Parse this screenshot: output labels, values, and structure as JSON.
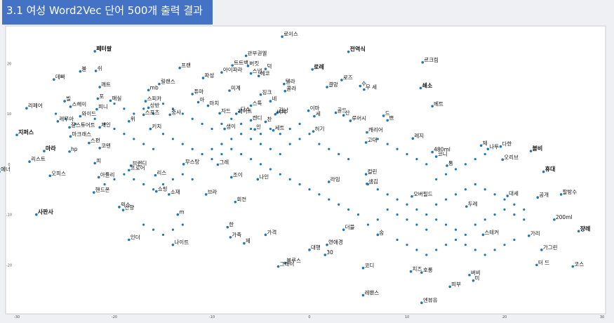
{
  "header": {
    "title": "3.1 여성 Word2Vec 단어 500개 출력 결과"
  },
  "colors": {
    "point": "#1f77b4",
    "title_bg": "#4472c4",
    "plot_bg": "#ffffff"
  },
  "chart_data": {
    "type": "scatter",
    "title": "",
    "xlabel": "",
    "ylabel": "",
    "xlim": [
      -30,
      30
    ],
    "ylim": [
      -29,
      27
    ],
    "grid": false,
    "xticks": [
      "-30",
      "-20",
      "-10",
      "0",
      "10",
      "20",
      "30"
    ],
    "yticks": [
      "20",
      "10",
      "0",
      "-10",
      "-20"
    ],
    "points": [
      {
        "label": "로이스",
        "x": -2.8,
        "y": 25.3
      },
      {
        "label": "페터팔",
        "x": -22.0,
        "y": 22.4,
        "bold": true
      },
      {
        "label": "관부권엘",
        "x": -6.5,
        "y": 21.5
      },
      {
        "label": "전역식",
        "x": 4.0,
        "y": 22.3,
        "bold": true
      },
      {
        "label": "르크림",
        "x": 11.6,
        "y": 20.2
      },
      {
        "label": "프랜",
        "x": -13.3,
        "y": 19.1
      },
      {
        "label": "트트백",
        "x": -7.9,
        "y": 19.6
      },
      {
        "label": "버킷",
        "x": -6.3,
        "y": 19.5
      },
      {
        "label": "아이파라",
        "x": -9.0,
        "y": 18.2
      },
      {
        "label": "로레",
        "x": 0.3,
        "y": 18.8,
        "bold": true
      },
      {
        "label": "블",
        "x": -23.5,
        "y": 18.4
      },
      {
        "label": "쉬",
        "x": -21.9,
        "y": 18.5
      },
      {
        "label": "스냅",
        "x": -6.0,
        "y": 18.0
      },
      {
        "label": "덕",
        "x": -4.5,
        "y": 18.9
      },
      {
        "label": "파성",
        "x": -10.9,
        "y": 17.1
      },
      {
        "label": "에코",
        "x": -5.2,
        "y": 17.5
      },
      {
        "label": "로즈",
        "x": 3.3,
        "y": 16.7
      },
      {
        "label": "데빠",
        "x": -26.2,
        "y": 16.8
      },
      {
        "label": "릴랜스",
        "x": -15.4,
        "y": 15.9
      },
      {
        "label": "텔라",
        "x": -2.6,
        "y": 15.9
      },
      {
        "label": "결망",
        "x": 1.8,
        "y": 15.3
      },
      {
        "label": "수",
        "x": 5.2,
        "y": 15.5
      },
      {
        "label": "무 세",
        "x": 5.6,
        "y": 14.8
      },
      {
        "label": "쇄소",
        "x": 11.4,
        "y": 15.1,
        "bold": true
      },
      {
        "label": "깨트",
        "x": -21.5,
        "y": 15.3
      },
      {
        "label": "mb",
        "x": -16.5,
        "y": 14.7
      },
      {
        "label": "퓨마",
        "x": -12.0,
        "y": 13.9
      },
      {
        "label": "콜라",
        "x": -2.5,
        "y": 14.5
      },
      {
        "label": "미계",
        "x": -8.2,
        "y": 14.6
      },
      {
        "label": "징크",
        "x": -5.0,
        "y": 13.8
      },
      {
        "label": "네",
        "x": -4.0,
        "y": 12.5
      },
      {
        "label": "포",
        "x": -21.7,
        "y": 13.0
      },
      {
        "label": "매실",
        "x": -20.4,
        "y": 12.6
      },
      {
        "label": "스피카",
        "x": -16.8,
        "y": 12.5
      },
      {
        "label": "아",
        "x": -11.4,
        "y": 12.3
      },
      {
        "label": "빌",
        "x": -25.1,
        "y": 12.5
      },
      {
        "label": "마치",
        "x": -10.4,
        "y": 11.6
      },
      {
        "label": "스헤이",
        "x": -24.5,
        "y": 11.4
      },
      {
        "label": "리페어",
        "x": -29.0,
        "y": 11.1
      },
      {
        "label": "피니",
        "x": -21.8,
        "y": 10.9
      },
      {
        "label": "상반",
        "x": -16.5,
        "y": 11.2
      },
      {
        "label": "자드",
        "x": -9.2,
        "y": 10.1
      },
      {
        "label": "다스",
        "x": -7.2,
        "y": 10.4
      },
      {
        "label": "게이트",
        "x": -7.5,
        "y": 10.0
      },
      {
        "label": "감남",
        "x": -3.3,
        "y": 10.2
      },
      {
        "label": "이마",
        "x": -0.1,
        "y": 10.6
      },
      {
        "label": "스톡",
        "x": -6.0,
        "y": 11.6
      },
      {
        "label": "골드",
        "x": 2.7,
        "y": 10.2
      },
      {
        "label": "베트",
        "x": 12.6,
        "y": 11.5
      },
      {
        "label": "와이드",
        "x": -23.5,
        "y": 9.5
      },
      {
        "label": "스포츠",
        "x": -17.0,
        "y": 9.8
      },
      {
        "label": "중사",
        "x": -14.3,
        "y": 9.8
      },
      {
        "label": "비치",
        "x": -3.5,
        "y": 9.9
      },
      {
        "label": "세",
        "x": 0.5,
        "y": 9.5
      },
      {
        "label": "산",
        "x": 3.5,
        "y": 9.7
      },
      {
        "label": "드",
        "x": 7.6,
        "y": 9.6
      },
      {
        "label": "루어시",
        "x": 4.2,
        "y": 8.6
      },
      {
        "label": "쁘",
        "x": 8.0,
        "y": 8.7
      },
      {
        "label": "레무아",
        "x": -25.8,
        "y": 8.5
      },
      {
        "label": "찬",
        "x": -4.5,
        "y": 8.4
      },
      {
        "label": "위",
        "x": -18.5,
        "y": 8.5
      },
      {
        "label": "캔디",
        "x": -6.0,
        "y": 8.7
      },
      {
        "label": "체인",
        "x": -21.5,
        "y": 7.3
      },
      {
        "label": "질스튜어트",
        "x": -24.6,
        "y": 7.3
      },
      {
        "label": "키치",
        "x": -16.3,
        "y": 7.0
      },
      {
        "label": "샘이",
        "x": -8.7,
        "y": 7.0
      },
      {
        "label": "인",
        "x": -5.6,
        "y": 6.9
      },
      {
        "label": "세트",
        "x": -3.7,
        "y": 6.7
      },
      {
        "label": "허기",
        "x": 0.4,
        "y": 6.5
      },
      {
        "label": "캐리어",
        "x": 5.9,
        "y": 6.3
      },
      {
        "label": "지퍼스",
        "x": -30.0,
        "y": 5.8,
        "bold": true
      },
      {
        "label": "마크래스",
        "x": -24.5,
        "y": 5.5
      },
      {
        "label": "레지",
        "x": 10.6,
        "y": 5.1
      },
      {
        "label": "고대",
        "x": 5.8,
        "y": 4.3
      },
      {
        "label": "스펀",
        "x": -22.6,
        "y": 4.2
      },
      {
        "label": "체",
        "x": 17.6,
        "y": 3.7
      },
      {
        "label": "다한",
        "x": 19.6,
        "y": 3.5
      },
      {
        "label": "나투",
        "x": 18.3,
        "y": 3.0
      },
      {
        "label": "코텐",
        "x": -21.5,
        "y": 3.2
      },
      {
        "label": "480ml",
        "x": 12.6,
        "y": 2.4
      },
      {
        "label": "볼비",
        "x": 22.7,
        "y": 2.6,
        "bold": true
      },
      {
        "label": "마라",
        "x": -27.2,
        "y": 2.6,
        "bold": true
      },
      {
        "label": "hp",
        "x": -24.6,
        "y": 2.5
      },
      {
        "label": "오리브",
        "x": 19.8,
        "y": 0.9
      },
      {
        "label": "코니",
        "x": 13.0,
        "y": 1.5
      },
      {
        "label": "리스트",
        "x": -28.7,
        "y": 0.5
      },
      {
        "label": "피",
        "x": -22.0,
        "y": 0.2
      },
      {
        "label": "무스탕",
        "x": -12.9,
        "y": 0.0
      },
      {
        "label": "그레",
        "x": -9.4,
        "y": -0.1
      },
      {
        "label": "통",
        "x": 14.1,
        "y": -0.3
      },
      {
        "label": "브랜디",
        "x": -18.3,
        "y": -0.3
      },
      {
        "label": "에너",
        "x": -31.8,
        "y": -1.5
      },
      {
        "label": "오피스",
        "x": -26.6,
        "y": -2.3
      },
      {
        "label": "아틀리",
        "x": -21.6,
        "y": -2.6
      },
      {
        "label": "프로어",
        "x": -18.5,
        "y": -1.2
      },
      {
        "label": "리스",
        "x": -15.8,
        "y": -2.2
      },
      {
        "label": "조이",
        "x": -8.0,
        "y": -2.6
      },
      {
        "label": "나인",
        "x": -5.3,
        "y": -3.0
      },
      {
        "label": "휴대",
        "x": 24.0,
        "y": -1.5,
        "bold": true
      },
      {
        "label": "컬린",
        "x": 5.8,
        "y": -2.0
      },
      {
        "label": "라잉",
        "x": 2.0,
        "y": -3.5
      },
      {
        "label": "샘김",
        "x": 5.9,
        "y": -3.9
      },
      {
        "label": "핸드폰",
        "x": -22.1,
        "y": -5.6
      },
      {
        "label": "쇼핑",
        "x": -15.7,
        "y": -5.4
      },
      {
        "label": "소재",
        "x": -14.4,
        "y": -6.0
      },
      {
        "label": "브라",
        "x": -10.6,
        "y": -6.0
      },
      {
        "label": "오버필드",
        "x": 10.5,
        "y": -6.4
      },
      {
        "label": "회전",
        "x": -7.6,
        "y": -7.5
      },
      {
        "label": "대세",
        "x": 20.3,
        "y": -6.3
      },
      {
        "label": "공개",
        "x": 23.4,
        "y": -6.6
      },
      {
        "label": "팔방수",
        "x": 25.8,
        "y": -6.0
      },
      {
        "label": "픽스",
        "x": -19.5,
        "y": -8.5
      },
      {
        "label": "두레",
        "x": 16.1,
        "y": -8.4
      },
      {
        "label": "산향",
        "x": -19.1,
        "y": -9.1
      },
      {
        "label": "사판사",
        "x": -28.0,
        "y": -10.0,
        "bold": true
      },
      {
        "label": "m",
        "x": -13.5,
        "y": -10.0
      },
      {
        "label": "200ml",
        "x": 25.1,
        "y": -11.0
      },
      {
        "label": "한",
        "x": -8.4,
        "y": -12.5
      },
      {
        "label": "가격",
        "x": -4.5,
        "y": -14.0
      },
      {
        "label": "더블",
        "x": 3.5,
        "y": -13.0
      },
      {
        "label": "쟝레",
        "x": 27.6,
        "y": -13.3,
        "bold": true
      },
      {
        "label": "숨",
        "x": 7.0,
        "y": -14.0
      },
      {
        "label": "스테커",
        "x": 17.8,
        "y": -14.0
      },
      {
        "label": "가리",
        "x": 22.5,
        "y": -14.2
      },
      {
        "label": "인더",
        "x": -18.5,
        "y": -15.0
      },
      {
        "label": "가족",
        "x": -8.1,
        "y": -14.5
      },
      {
        "label": "제",
        "x": -6.7,
        "y": -15.7
      },
      {
        "label": "연애경",
        "x": 1.8,
        "y": -16.0
      },
      {
        "label": "나이트",
        "x": -14.0,
        "y": -16.0
      },
      {
        "label": "대행",
        "x": 0.0,
        "y": -17.0
      },
      {
        "label": "30",
        "x": 1.6,
        "y": -18.0
      },
      {
        "label": "블루스",
        "x": -2.5,
        "y": -19.6
      },
      {
        "label": "그래이",
        "x": -3.2,
        "y": -20.3
      },
      {
        "label": "코디",
        "x": 5.5,
        "y": -20.6
      },
      {
        "label": "가그린",
        "x": 23.8,
        "y": -17.0
      },
      {
        "label": "터 드",
        "x": 23.3,
        "y": -20.0
      },
      {
        "label": "코스",
        "x": 27.0,
        "y": -20.3
      },
      {
        "label": "치즈",
        "x": 10.4,
        "y": -21.3
      },
      {
        "label": "호롱",
        "x": 11.5,
        "y": -21.5
      },
      {
        "label": "버비",
        "x": 16.4,
        "y": -22.0
      },
      {
        "label": "미",
        "x": 16.8,
        "y": -23.1
      },
      {
        "label": "피부",
        "x": 14.4,
        "y": -24.3
      },
      {
        "label": "레팬스",
        "x": 5.5,
        "y": -26.0
      },
      {
        "label": "엔뷰유",
        "x": 11.5,
        "y": -27.5
      }
    ],
    "extra_points": [
      [
        -26,
        10
      ],
      [
        -25,
        9
      ],
      [
        -24,
        8
      ],
      [
        -22,
        9
      ],
      [
        -21,
        8
      ],
      [
        -20,
        7
      ],
      [
        -19,
        6
      ],
      [
        -18,
        5
      ],
      [
        -17,
        4
      ],
      [
        -16,
        3
      ],
      [
        -15,
        6
      ],
      [
        -14,
        5
      ],
      [
        -13,
        4
      ],
      [
        -12,
        3
      ],
      [
        -11,
        2
      ],
      [
        -10,
        1
      ],
      [
        -9,
        4
      ],
      [
        -8,
        5
      ],
      [
        -7,
        6
      ],
      [
        -6,
        5
      ],
      [
        -5,
        4
      ],
      [
        -4,
        3
      ],
      [
        -3,
        2
      ],
      [
        -2,
        4
      ],
      [
        -1,
        5
      ],
      [
        0,
        6
      ],
      [
        1,
        4
      ],
      [
        2,
        3
      ],
      [
        3,
        2
      ],
      [
        4,
        1
      ],
      [
        -20,
        12
      ],
      [
        -19,
        11
      ],
      [
        -18,
        10
      ],
      [
        -17,
        11
      ],
      [
        -16,
        10
      ],
      [
        -15,
        12
      ],
      [
        -14,
        11
      ],
      [
        -13,
        10
      ],
      [
        -12,
        9
      ],
      [
        -11,
        8
      ],
      [
        -10,
        7
      ],
      [
        -9,
        8
      ],
      [
        -8,
        9
      ],
      [
        -7,
        8
      ],
      [
        -6,
        7
      ],
      [
        -5,
        6
      ],
      [
        -4,
        7
      ],
      [
        -3,
        6
      ],
      [
        -2,
        7
      ],
      [
        -1,
        8
      ],
      [
        6,
        -4
      ],
      [
        7,
        -5
      ],
      [
        8,
        -6
      ],
      [
        9,
        -7
      ],
      [
        10,
        -8
      ],
      [
        11,
        -9
      ],
      [
        12,
        -10
      ],
      [
        13,
        -8
      ],
      [
        14,
        -7
      ],
      [
        15,
        -6
      ],
      [
        16,
        -5
      ],
      [
        17,
        -4
      ],
      [
        18,
        -5
      ],
      [
        19,
        -6
      ],
      [
        20,
        -7
      ],
      [
        21,
        -8
      ],
      [
        22,
        -9
      ],
      [
        13,
        -11
      ],
      [
        14,
        -12
      ],
      [
        15,
        -13
      ],
      [
        16,
        -14
      ],
      [
        17,
        -12
      ],
      [
        18,
        -11
      ],
      [
        19,
        -10
      ],
      [
        20,
        -9
      ],
      [
        21,
        -10
      ],
      [
        22,
        -11
      ],
      [
        8,
        -9
      ],
      [
        9,
        -10
      ],
      [
        10,
        -11
      ],
      [
        11,
        -12
      ],
      [
        12,
        -13
      ],
      [
        7,
        -11
      ],
      [
        6,
        -12
      ],
      [
        5,
        -10
      ],
      [
        4,
        -9
      ],
      [
        3,
        -8
      ],
      [
        2,
        -7
      ],
      [
        1,
        -6
      ],
      [
        0,
        -5
      ],
      [
        -1,
        -4
      ],
      [
        -2,
        -3
      ],
      [
        -3,
        -2
      ],
      [
        -4,
        -1
      ],
      [
        -5,
        0
      ],
      [
        -6,
        1
      ],
      [
        -7,
        2
      ],
      [
        -8,
        3
      ],
      [
        -9,
        2
      ],
      [
        -10,
        3
      ],
      [
        -21,
        -4
      ],
      [
        -20,
        -3
      ],
      [
        -19,
        -2
      ],
      [
        -18,
        -3
      ],
      [
        -17,
        -4
      ],
      [
        -16,
        -5
      ],
      [
        -15,
        -4
      ],
      [
        -14,
        -3
      ],
      [
        -13,
        -2
      ],
      [
        -12,
        -3
      ],
      [
        -17,
        -12
      ],
      [
        -16,
        -13
      ],
      [
        -15,
        -14
      ],
      [
        -14,
        -13
      ],
      [
        -13,
        -12
      ],
      [
        9,
        -15
      ],
      [
        10,
        -16
      ],
      [
        11,
        -17
      ],
      [
        12,
        -18
      ],
      [
        13,
        -17
      ],
      [
        14,
        -16
      ],
      [
        15,
        -15
      ],
      [
        16,
        -16
      ],
      [
        17,
        -17
      ],
      [
        18,
        -18
      ],
      [
        19,
        -17
      ],
      [
        20,
        -16
      ],
      [
        21,
        -15
      ],
      [
        13,
        -3
      ],
      [
        14,
        -2
      ],
      [
        15,
        -1
      ],
      [
        16,
        0
      ],
      [
        17,
        1
      ],
      [
        18,
        2
      ],
      [
        12,
        0
      ],
      [
        11,
        1
      ],
      [
        10,
        2
      ],
      [
        9,
        3
      ],
      [
        8,
        4
      ],
      [
        7,
        5
      ]
    ]
  }
}
